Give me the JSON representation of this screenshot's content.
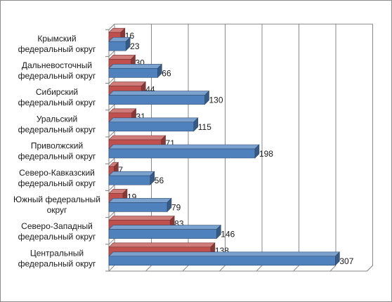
{
  "chart_data": {
    "type": "bar",
    "orientation": "horizontal",
    "style": "3d",
    "grid": true,
    "legend": "none",
    "xlim": [
      0,
      350
    ],
    "categories": [
      [
        "Крымский",
        "федеральный округ"
      ],
      [
        "Дальневосточный",
        "федеральный округ"
      ],
      [
        "Сибирский",
        "федеральный округ"
      ],
      [
        "Уральский",
        "федеральный округ"
      ],
      [
        "Приволжский",
        "федеральный округ"
      ],
      [
        "Северо-Кавказский",
        "федеральный округ"
      ],
      [
        "Южный федеральный",
        "округ"
      ],
      [
        "Северо-Западный",
        "федеральный округ"
      ],
      [
        "Центральный",
        "федеральный округ"
      ]
    ],
    "series": [
      {
        "color": "#c0504d",
        "values": [
          16,
          30,
          44,
          31,
          71,
          7,
          19,
          83,
          138
        ]
      },
      {
        "color": "#4f81bd",
        "values": [
          23,
          66,
          130,
          115,
          198,
          56,
          79,
          146,
          307
        ]
      }
    ]
  }
}
